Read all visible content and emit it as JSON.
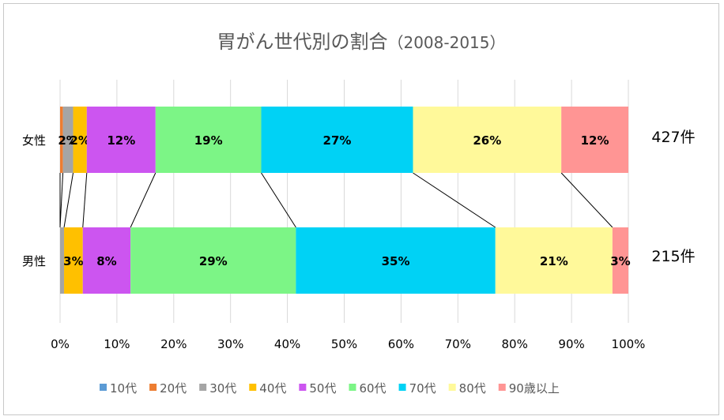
{
  "chart_data": {
    "type": "bar",
    "orientation": "horizontal",
    "stacked": "percent",
    "title": "胃がん世代別の割合",
    "subtitle": "（2008-2015）",
    "categories": [
      "女性",
      "男性"
    ],
    "totals": [
      "427件",
      "215件"
    ],
    "x_ticks": [
      "0%",
      "10%",
      "20%",
      "30%",
      "40%",
      "50%",
      "60%",
      "70%",
      "80%",
      "90%",
      "100%"
    ],
    "xlim": [
      0,
      100
    ],
    "grid": true,
    "legend_position": "bottom",
    "series": [
      {
        "name": "10代",
        "color": "#5b9bd5",
        "values": [
          0.0,
          0.0
        ],
        "labels": [
          "",
          ""
        ]
      },
      {
        "name": "20代",
        "color": "#ed7d31",
        "values": [
          0.5,
          0.0
        ],
        "labels": [
          "",
          ""
        ]
      },
      {
        "name": "30代",
        "color": "#a5a5a5",
        "values": [
          1.8,
          0.7
        ],
        "labels": [
          "2%",
          ""
        ]
      },
      {
        "name": "40代",
        "color": "#ffc000",
        "values": [
          2.4,
          3.3
        ],
        "labels": [
          "2%",
          "3%"
        ]
      },
      {
        "name": "50代",
        "color": "#cc55f0",
        "values": [
          12.1,
          8.4
        ],
        "labels": [
          "12%",
          "8%"
        ]
      },
      {
        "name": "60代",
        "color": "#7cf586",
        "values": [
          18.6,
          29.1
        ],
        "labels": [
          "19%",
          "29%"
        ]
      },
      {
        "name": "70代",
        "color": "#00d2f5",
        "values": [
          26.7,
          35.1
        ],
        "labels": [
          "27%",
          "35%"
        ]
      },
      {
        "name": "80代",
        "color": "#fff99a",
        "values": [
          26.1,
          20.6
        ],
        "labels": [
          "26%",
          "21%"
        ]
      },
      {
        "name": "90歳以上",
        "color": "#ff9594",
        "values": [
          11.8,
          2.8
        ],
        "labels": [
          "12%",
          "3%"
        ]
      }
    ]
  }
}
